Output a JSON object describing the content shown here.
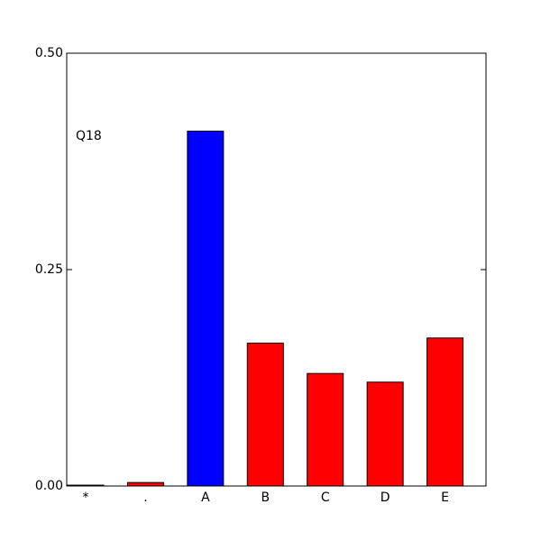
{
  "chart_data": {
    "type": "bar",
    "annotation": "Q18",
    "categories": [
      "*",
      ".",
      "A",
      "B",
      "C",
      "D",
      "E"
    ],
    "values": [
      0.001,
      0.004,
      0.41,
      0.165,
      0.13,
      0.12,
      0.171
    ],
    "colors": [
      "#ff0000",
      "#ff0000",
      "#0000ff",
      "#ff0000",
      "#ff0000",
      "#ff0000",
      "#ff0000"
    ],
    "ylim": [
      0,
      0.5
    ],
    "yticks": [
      {
        "value": 0,
        "label": "0.00"
      },
      {
        "value": 0.25,
        "label": "0.25"
      },
      {
        "value": 0.5,
        "label": "0.50"
      }
    ],
    "grid": false
  }
}
